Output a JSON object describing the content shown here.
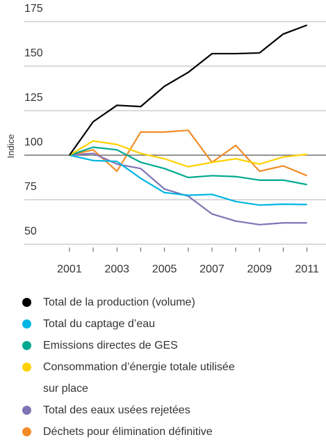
{
  "chart_data": {
    "type": "line",
    "y_label": "Indice",
    "x": [
      2001,
      2002,
      2003,
      2004,
      2005,
      2006,
      2007,
      2008,
      2009,
      2010,
      2011
    ],
    "xlim": [
      1999.1,
      2011.8
    ],
    "xticks": [
      2001,
      2003,
      2005,
      2007,
      2009,
      2011
    ],
    "ylim": [
      47,
      178
    ],
    "yticks": [
      50,
      75,
      100,
      125,
      150,
      175
    ],
    "grid": true,
    "baseline": 100,
    "series": [
      {
        "name": "Total de la production (volume)",
        "color": "#000000",
        "values": [
          100,
          118.8,
          128,
          127.3,
          138.7,
          146.5,
          157,
          157,
          157.4,
          168,
          173
        ]
      },
      {
        "name": "Total du captage d’eau",
        "color": "#00b5e2",
        "values": [
          100,
          97,
          96.5,
          87,
          79,
          77.5,
          78,
          74,
          72,
          72.5,
          72.3
        ]
      },
      {
        "name": "Emissions directes de GES",
        "color": "#00a98f",
        "values": [
          100,
          104.5,
          103,
          96,
          92.5,
          87.5,
          88.5,
          88,
          86,
          86,
          83.5
        ]
      },
      {
        "name": "Consommation d’énergie totale utilisée sur place",
        "color": "#ffd100",
        "values": [
          100,
          108,
          106,
          101,
          98,
          93.5,
          96,
          98,
          95,
          99,
          100.5
        ]
      },
      {
        "name": "Total des eaux usées rejetées",
        "color": "#7f73b5",
        "values": [
          100,
          101,
          95,
          92.5,
          81,
          77,
          67,
          63,
          61,
          62,
          62
        ]
      },
      {
        "name": "Déchets pour élimination définitive",
        "color": "#f28c28",
        "values": [
          100,
          103,
          91,
          113,
          113,
          114,
          96,
          105.5,
          91,
          94,
          88.5
        ]
      }
    ]
  }
}
